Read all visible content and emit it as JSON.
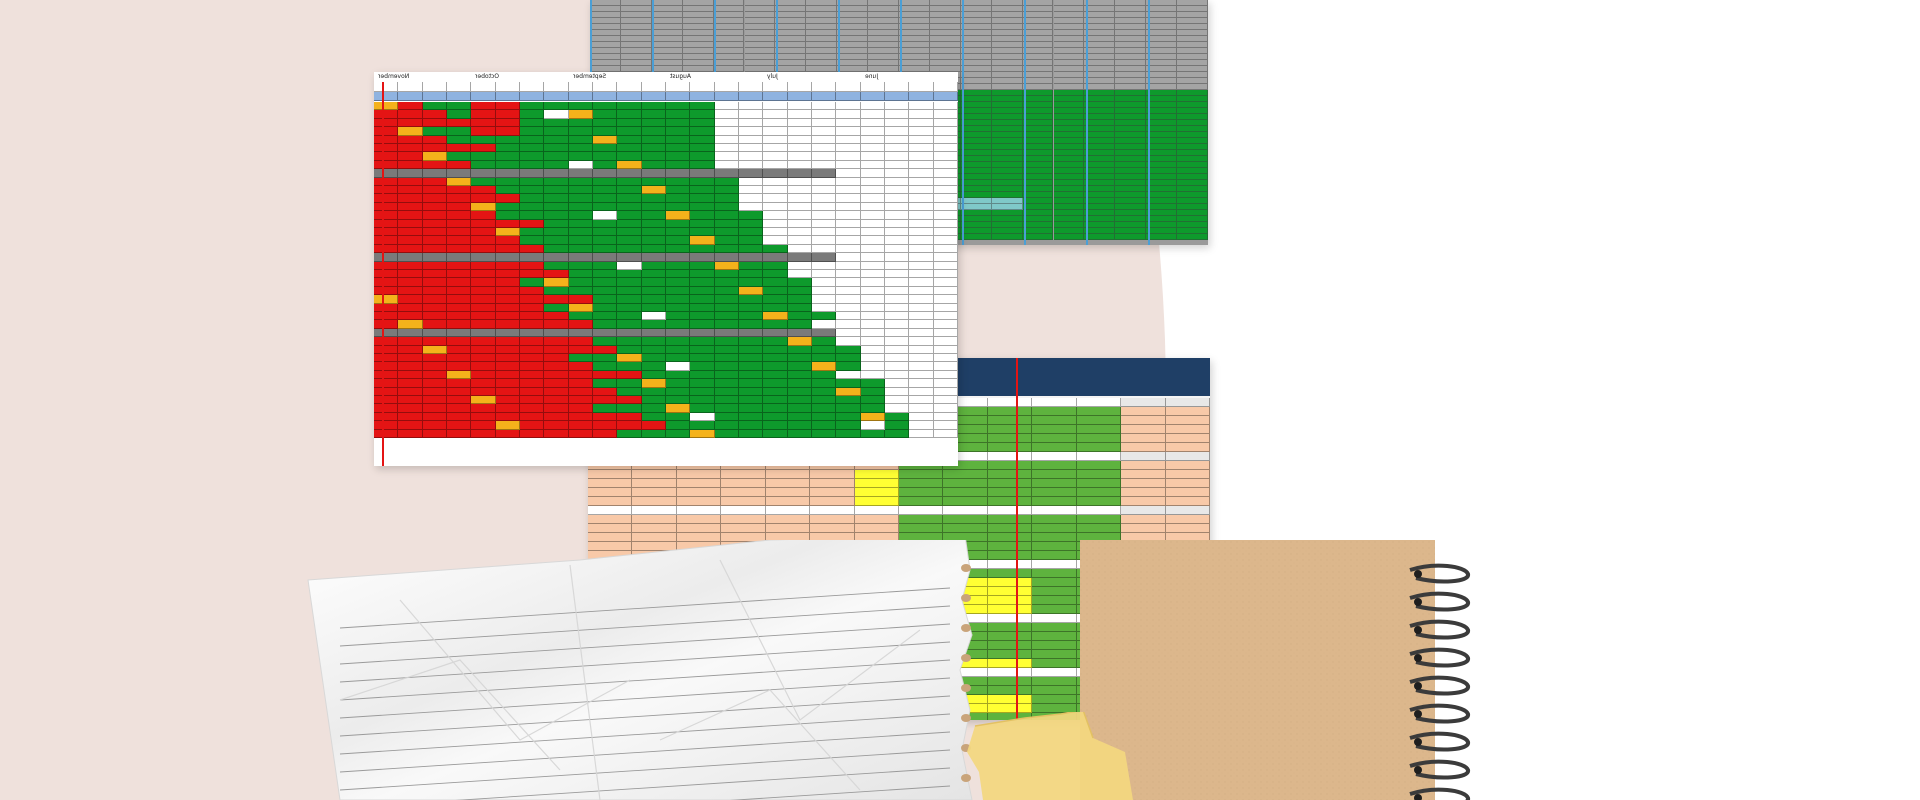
{
  "scene": {
    "description_colors": {
      "background": "#ffffff",
      "blush": "#efe1dc",
      "sheet_green": "#0e9a2c",
      "sheet_red": "#e41414",
      "sheet_orange": "#f4b21b",
      "sheet_gray": "#7a7a7a",
      "sheet_blue_header": "#8fb3e0",
      "light_green": "#5eb33e",
      "salmon": "#f8c9a8",
      "yellow": "#ffff33",
      "kraft": "#dcb78c",
      "tape": "#f3d77f",
      "paper": "#f4f4f4"
    }
  },
  "main_sheet": {
    "months": [
      "November",
      "October",
      "September",
      "August",
      "July",
      "June"
    ]
  },
  "icons": {
    "spiral": "spiral-binding-icon"
  }
}
